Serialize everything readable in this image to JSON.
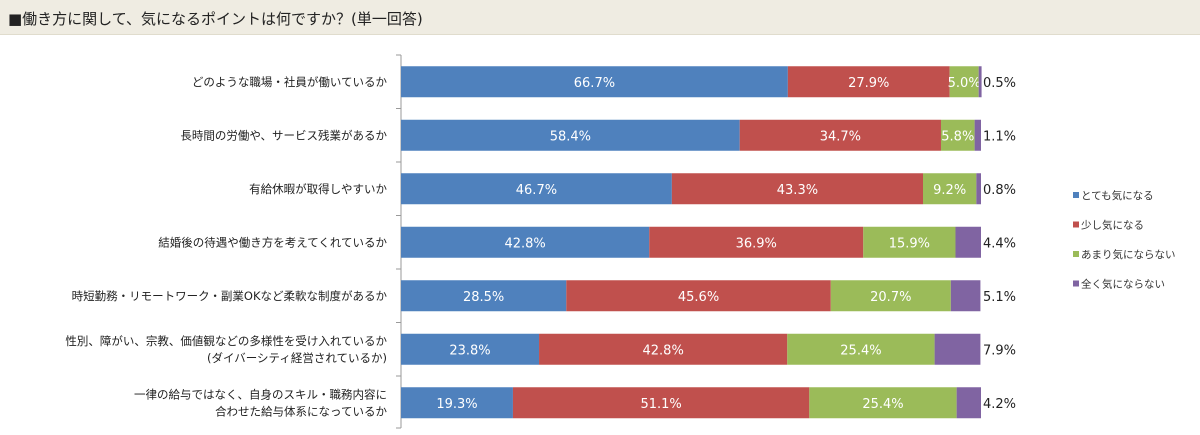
{
  "title": "■働き方に関して、気になるポイントは何ですか？(単一回答)",
  "chart_data": {
    "type": "bar",
    "stacked": true,
    "orientation": "horizontal",
    "unit": "%",
    "xlim": [
      0,
      100
    ],
    "legend_position": "right",
    "categories": [
      [
        "どのような職場・社員が働いているか"
      ],
      [
        "長時間の労働や、サービス残業があるか"
      ],
      [
        "有給休暇が取得しやすいか"
      ],
      [
        "結婚後の待遇や働き方を考えてくれているか"
      ],
      [
        "時短勤務・リモートワーク・副業OKなど柔軟な制度があるか"
      ],
      [
        "性別、障がい、宗教、価値観などの多様性を受け入れているか",
        "(ダイバーシティ経営されているか)"
      ],
      [
        "一律の給与ではなく、自身のスキル・職務内容に",
        "合わせた給与体系になっているか"
      ]
    ],
    "series": [
      {
        "name": "とても気になる",
        "color": "#4f81bd",
        "values": [
          66.7,
          58.4,
          46.7,
          42.8,
          28.5,
          23.8,
          19.3
        ]
      },
      {
        "name": "少し気になる",
        "color": "#c0504d",
        "values": [
          27.9,
          34.7,
          43.3,
          36.9,
          45.6,
          42.8,
          51.1
        ]
      },
      {
        "name": "あまり気にならない",
        "color": "#9bbb59",
        "values": [
          5.0,
          5.8,
          9.2,
          15.9,
          20.7,
          25.4,
          25.4
        ]
      },
      {
        "name": "全く気にならない",
        "color": "#8064a2",
        "values": [
          0.5,
          1.1,
          0.8,
          4.4,
          5.1,
          7.9,
          4.2
        ]
      }
    ]
  }
}
